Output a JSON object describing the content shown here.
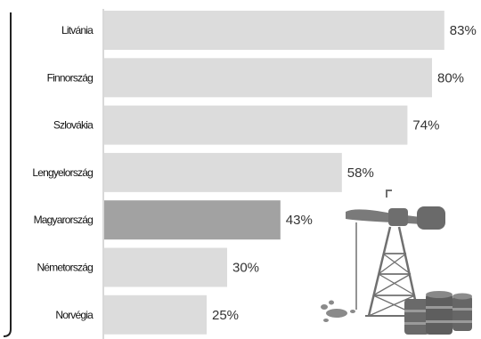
{
  "chart_data": {
    "type": "bar",
    "orientation": "horizontal",
    "categories": [
      "Litvánia",
      "Finnország",
      "Szlovákia",
      "Lengyelország",
      "Magyarország",
      "Németország",
      "Norvégia"
    ],
    "values": [
      83,
      80,
      74,
      58,
      43,
      30,
      25
    ],
    "value_labels": [
      "83%",
      "80%",
      "74%",
      "58%",
      "43%",
      "30%",
      "25%"
    ],
    "highlight_category": "Magyarország",
    "xlim": [
      0,
      100
    ],
    "grid": false,
    "colors": {
      "bar": "#dcdcdc",
      "highlight": "#a2a2a2",
      "axis": "#b0b0b0",
      "frame": "#222222"
    },
    "illustration": "oil-derrick-and-barrels-icon"
  }
}
